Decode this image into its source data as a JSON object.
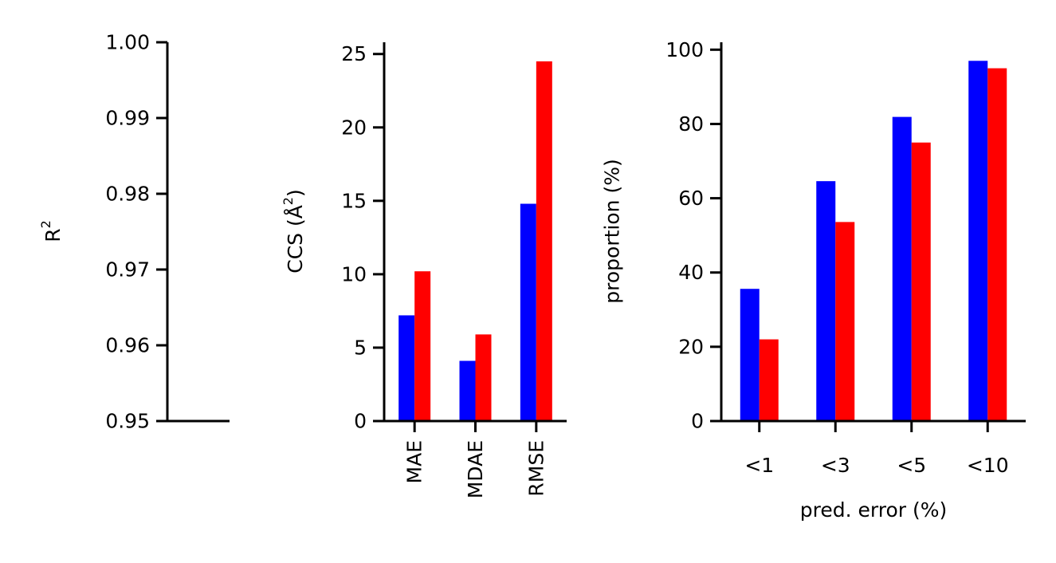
{
  "colors": {
    "series_a": "#0000ff",
    "series_b": "#ff0000",
    "axis": "#000000"
  },
  "chart_data": [
    {
      "type": "bar",
      "ylabel_base": "R",
      "ylabel_sup": "2",
      "ylim": [
        0.95,
        1.0
      ],
      "yticks": [
        "0.95",
        "0.96",
        "0.97",
        "0.98",
        "0.99",
        "1.00"
      ],
      "categories": [],
      "series": [
        {
          "color": "#0000ff",
          "values": []
        },
        {
          "color": "#ff0000",
          "values": []
        }
      ]
    },
    {
      "type": "bar",
      "ylabel_base": "CCS (Å",
      "ylabel_sup": "2",
      "ylabel_end": ")",
      "ylim": [
        0,
        25.8
      ],
      "yticks": [
        "0",
        "5",
        "10",
        "15",
        "20",
        "25"
      ],
      "categories": [
        "MAE",
        "MDAE",
        "RMSE"
      ],
      "series": [
        {
          "color": "#0000ff",
          "values": [
            7.2,
            4.1,
            14.8
          ]
        },
        {
          "color": "#ff0000",
          "values": [
            10.2,
            5.9,
            24.5
          ]
        }
      ]
    },
    {
      "type": "bar",
      "ylabel": "proportion (%)",
      "xlabel": "pred. error (%)",
      "ylim": [
        0,
        102
      ],
      "yticks": [
        "0",
        "20",
        "40",
        "60",
        "80",
        "100"
      ],
      "categories": [
        "<1",
        "<3",
        "<5",
        "<10"
      ],
      "series": [
        {
          "color": "#0000ff",
          "values": [
            35.6,
            64.6,
            81.9,
            97.0
          ]
        },
        {
          "color": "#ff0000",
          "values": [
            22.0,
            53.6,
            75.0,
            95.0
          ]
        }
      ]
    }
  ]
}
